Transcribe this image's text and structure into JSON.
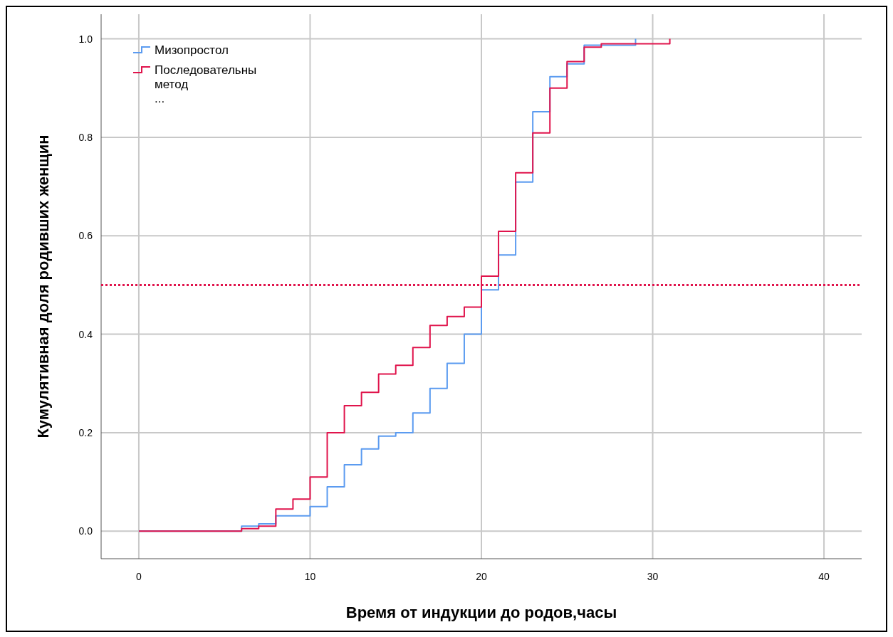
{
  "chart_data": {
    "type": "step",
    "xlabel": "Время от индукции до родов,часы",
    "ylabel": "Кумулятивная доля родивших женщин",
    "series": [
      {
        "name": "Мизопростол",
        "color": "#5b9bf0",
        "x": [
          0,
          6,
          7,
          8,
          10,
          11,
          12,
          13,
          14,
          15,
          16,
          17,
          18,
          19,
          20,
          21,
          22,
          23,
          24,
          25,
          26,
          29
        ],
        "values": [
          0,
          0.01,
          0.015,
          0.031,
          0.05,
          0.09,
          0.135,
          0.167,
          0.193,
          0.2,
          0.24,
          0.29,
          0.341,
          0.4,
          0.49,
          0.561,
          0.709,
          0.852,
          0.923,
          0.949,
          0.987,
          1.0
        ]
      },
      {
        "name": "Последовательны метод ...",
        "color": "#e0144c",
        "x": [
          0,
          6,
          7,
          8,
          9,
          10,
          11,
          12,
          13,
          14,
          15,
          16,
          17,
          18,
          19,
          20,
          21,
          22,
          23,
          24,
          25,
          26,
          27,
          31
        ],
        "values": [
          0,
          0.005,
          0.01,
          0.045,
          0.065,
          0.11,
          0.2,
          0.255,
          0.282,
          0.319,
          0.337,
          0.373,
          0.418,
          0.436,
          0.455,
          0.518,
          0.609,
          0.728,
          0.809,
          0.9,
          0.954,
          0.983,
          0.99,
          1.0
        ]
      }
    ],
    "xlim": [
      -2.2,
      42.2
    ],
    "xticks": [
      0,
      10,
      20,
      30,
      40
    ],
    "ylim": [
      -0.056,
      1.05
    ],
    "yticks": [
      {
        "value": 0,
        "label": "0.0"
      },
      {
        "value": 0.2,
        "label": "0.2"
      },
      {
        "value": 0.4,
        "label": "0.4"
      },
      {
        "value": 0.6,
        "label": "0.6"
      },
      {
        "value": 0.8,
        "label": "0.8"
      },
      {
        "value": 1,
        "label": "1.0"
      }
    ],
    "ref_lines": [
      {
        "axis": "y",
        "value": 0.5,
        "color": "#e0144c",
        "line_style": "dotted"
      }
    ],
    "grid": true,
    "legend": "top left"
  }
}
